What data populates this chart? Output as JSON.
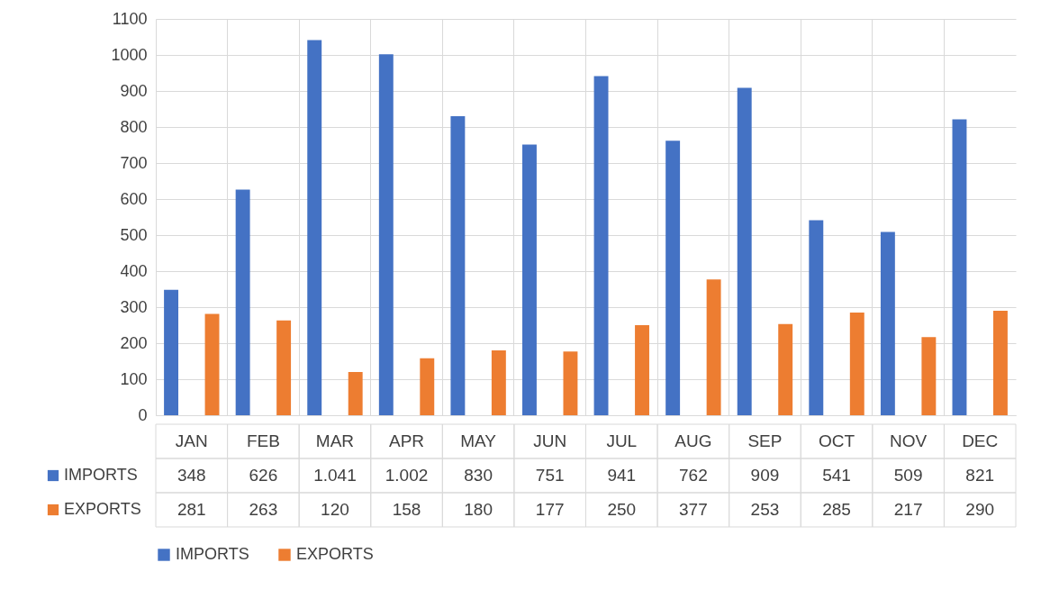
{
  "chart_data": {
    "type": "bar",
    "categories": [
      "JAN",
      "FEB",
      "MAR",
      "APR",
      "MAY",
      "JUN",
      "JUL",
      "AUG",
      "SEP",
      "OCT",
      "NOV",
      "DEC"
    ],
    "series": [
      {
        "name": "IMPORTS",
        "color": "#4472c4",
        "values": [
          348,
          626,
          1041,
          1002,
          830,
          751,
          941,
          762,
          909,
          541,
          509,
          821
        ],
        "value_labels": [
          "348",
          "626",
          "1.041",
          "1.002",
          "830",
          "751",
          "941",
          "762",
          "909",
          "541",
          "509",
          "821"
        ]
      },
      {
        "name": "EXPORTS",
        "color": "#ed7d31",
        "values": [
          281,
          263,
          120,
          158,
          180,
          177,
          250,
          377,
          253,
          285,
          217,
          290
        ],
        "value_labels": [
          "281",
          "263",
          "120",
          "158",
          "180",
          "177",
          "250",
          "377",
          "253",
          "285",
          "217",
          "290"
        ]
      }
    ],
    "ylim": [
      0,
      1100
    ],
    "yticks": [
      0,
      100,
      200,
      300,
      400,
      500,
      600,
      700,
      800,
      900,
      1000,
      1100
    ],
    "grid": "y",
    "legend": "bottom"
  }
}
